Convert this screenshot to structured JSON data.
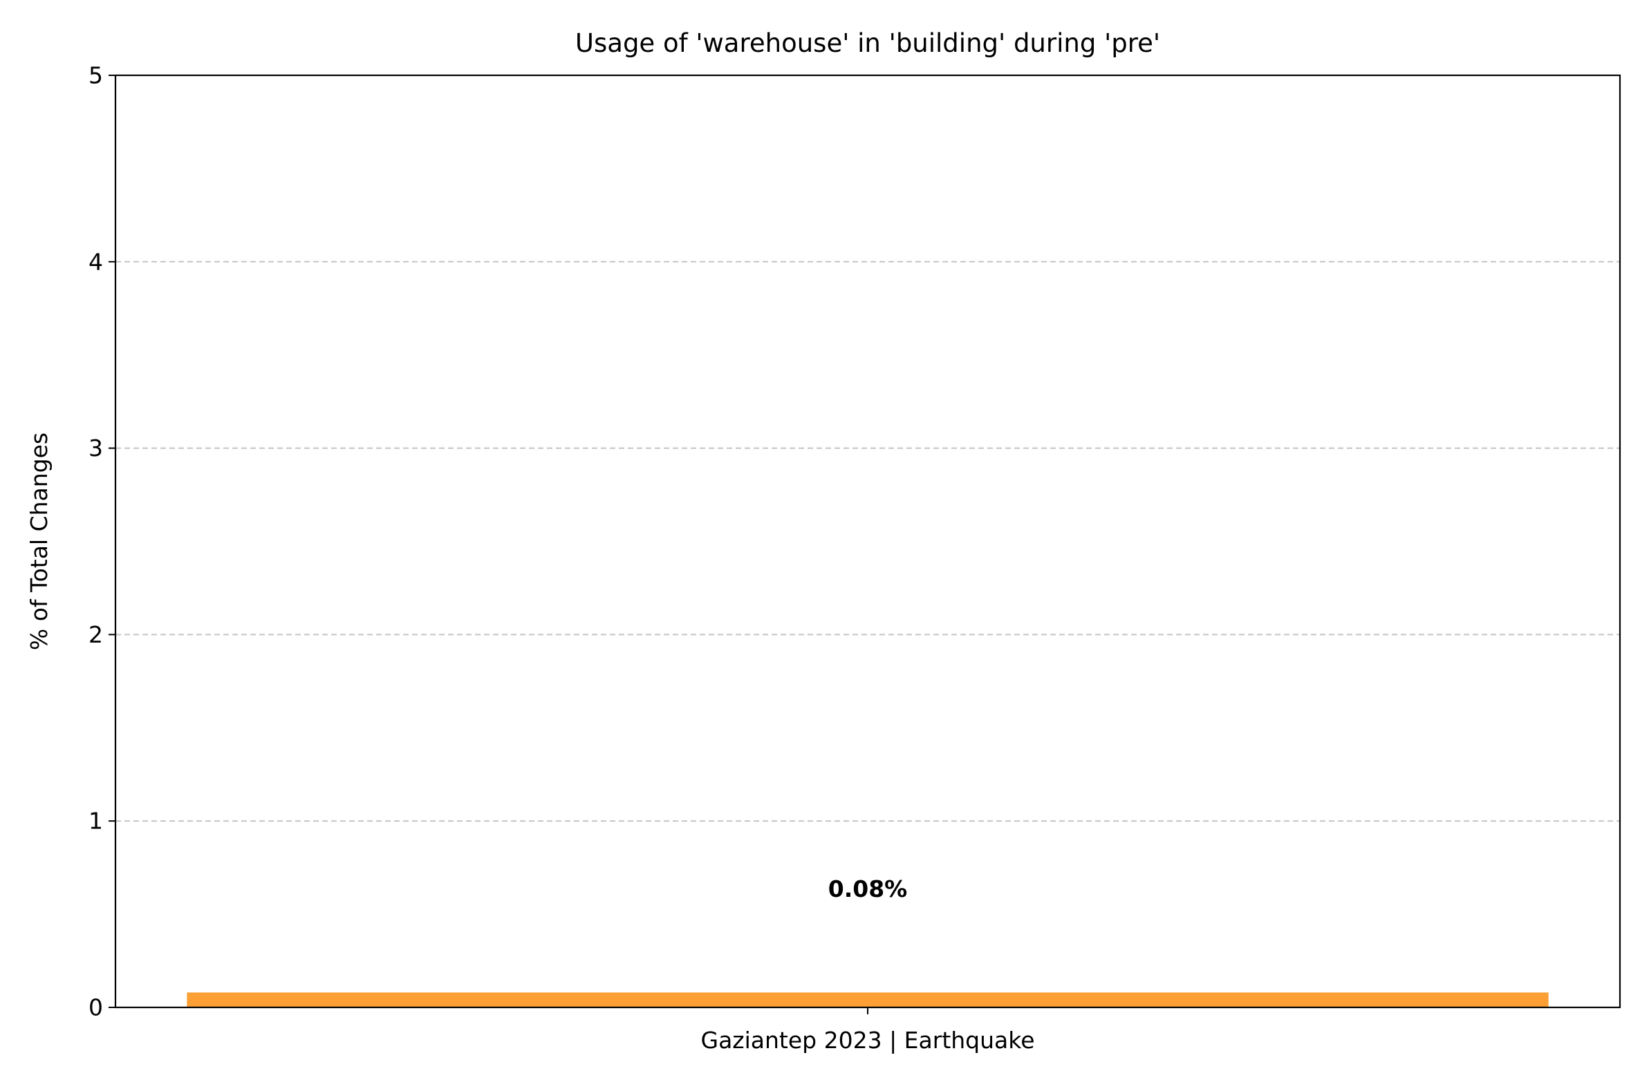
{
  "chart_data": {
    "type": "bar",
    "title": "Usage of 'warehouse' in 'building' during 'pre'",
    "xlabel": "",
    "ylabel": "% of Total Changes",
    "categories": [
      "Gaziantep 2023 | Earthquake"
    ],
    "values": [
      0.08
    ],
    "data_labels": [
      "0.08%"
    ],
    "ylim": [
      0,
      5
    ],
    "yticks": [
      "0",
      "1",
      "2",
      "3",
      "4",
      "5"
    ],
    "grid": "y-dashed",
    "legend": "none",
    "bar_color": "#fca035",
    "grid_color": "#c4c4c4"
  }
}
